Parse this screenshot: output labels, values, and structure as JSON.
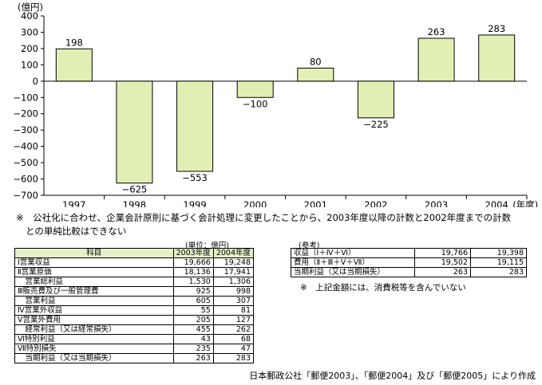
{
  "chart_data": {
    "type": "bar",
    "unit_label": "(億円)",
    "categories": [
      "1997",
      "1998",
      "1999",
      "2000",
      "2001",
      "2002",
      "2003",
      "2004"
    ],
    "values": [
      198,
      -625,
      -553,
      -100,
      80,
      -225,
      263,
      283
    ],
    "value_labels": [
      "198",
      "−625",
      "−553",
      "−100",
      "80",
      "−225",
      "263",
      "283"
    ],
    "yticks": [
      "400",
      "300",
      "200",
      "100",
      "0",
      "−100",
      "−200",
      "−300",
      "−400",
      "−500",
      "−600",
      "−700"
    ],
    "ylim": [
      -700,
      400
    ],
    "x_suffix": "(年度)",
    "bar_color": "#e2efb4",
    "bar_edge": "#000000"
  },
  "note": {
    "line1": "※　公社化に合わせ、企業会計原則に基づく会計処理に変更したことから、2003年度以降の計数と2002年度までの計数",
    "line2": "との単純比較はできない"
  },
  "left_table": {
    "unit": "(単位：億円)",
    "header": [
      "科目",
      "2003年度",
      "2004年度"
    ],
    "rows": [
      {
        "label": "Ⅰ営業収益",
        "v2003": "19,666",
        "v2004": "19,248"
      },
      {
        "label": "Ⅱ営業原価",
        "v2003": "18,136",
        "v2004": "17,941"
      },
      {
        "label": "　営業総利益",
        "v2003": "1,530",
        "v2004": "1,306"
      },
      {
        "label": "Ⅲ販売費及び一般管理費",
        "v2003": "925",
        "v2004": "998"
      },
      {
        "label": "　営業利益",
        "v2003": "605",
        "v2004": "307"
      },
      {
        "label": "Ⅳ営業外収益",
        "v2003": "55",
        "v2004": "81"
      },
      {
        "label": "Ⅴ営業外費用",
        "v2003": "205",
        "v2004": "127"
      },
      {
        "label": "　経常利益（又は経常損失）",
        "v2003": "455",
        "v2004": "262"
      },
      {
        "label": "Ⅵ特別利益",
        "v2003": "43",
        "v2004": "68"
      },
      {
        "label": "Ⅶ特別損失",
        "v2003": "235",
        "v2004": "47"
      },
      {
        "label": "　当期利益（又は当期損失）",
        "v2003": "263",
        "v2004": "283"
      }
    ]
  },
  "right_table": {
    "title": "(参考)",
    "rows": [
      {
        "label": "収益（Ⅰ＋Ⅳ＋Ⅵ）",
        "v2003": "19,766",
        "v2004": "19,398"
      },
      {
        "label": "費用（Ⅱ＋Ⅲ＋Ⅴ＋Ⅶ）",
        "v2003": "19,502",
        "v2004": "19,115"
      },
      {
        "label": "当期利益（又は当期損失）",
        "v2003": "263",
        "v2004": "283"
      }
    ],
    "note": "※　上記金額には、消費税等を含んでいない"
  },
  "source": "日本郵政公社「郵便2003」、「郵便2004」及び「郵便2005」により作成"
}
